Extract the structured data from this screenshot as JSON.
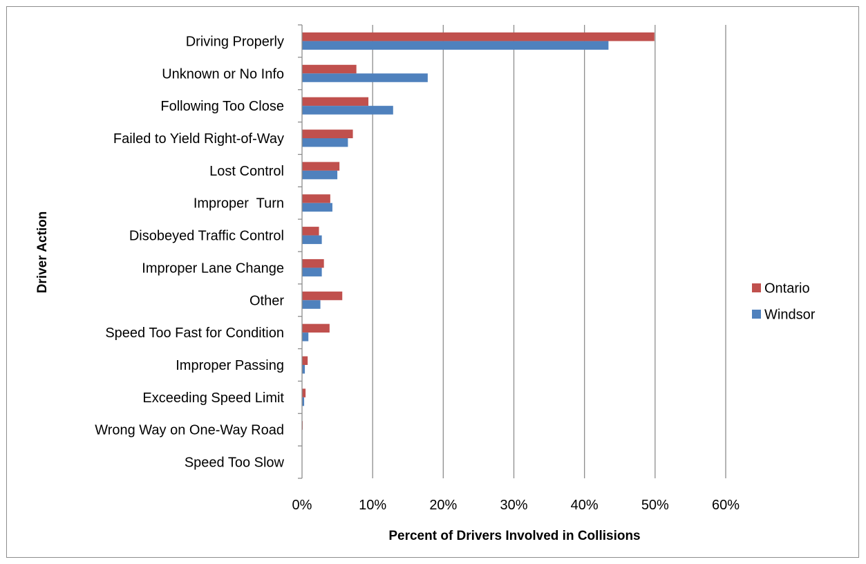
{
  "chart_data": {
    "type": "bar",
    "orientation": "horizontal",
    "categories": [
      "Driving Properly",
      "Unknown or No Info",
      "Following Too Close",
      "Failed to Yield Right-of-Way",
      "Lost Control",
      "Improper  Turn",
      "Disobeyed Traffic Control",
      "Improper Lane Change",
      "Other",
      "Speed Too Fast for Condition",
      "Improper Passing",
      "Exceeding Speed Limit",
      "Wrong Way on One-Way Road",
      "Speed Too Slow"
    ],
    "series": [
      {
        "name": "Ontario",
        "color": "#c0504d",
        "values": [
          49.9,
          7.7,
          9.4,
          7.2,
          5.3,
          4.0,
          2.4,
          3.1,
          5.7,
          3.9,
          0.8,
          0.5,
          0.1,
          0.0
        ]
      },
      {
        "name": "Windsor",
        "color": "#4f81bd",
        "values": [
          43.4,
          17.8,
          12.9,
          6.5,
          5.0,
          4.3,
          2.8,
          2.8,
          2.6,
          0.9,
          0.4,
          0.3,
          0.0,
          0.0
        ]
      }
    ],
    "xlim": [
      0,
      60
    ],
    "xticks": [
      "0%",
      "10%",
      "20%",
      "30%",
      "40%",
      "50%",
      "60%"
    ],
    "xlabel": "Percent of Drivers Involved in Collisions",
    "ylabel": "Driver Action",
    "grid": "vertical",
    "legend": "right"
  }
}
